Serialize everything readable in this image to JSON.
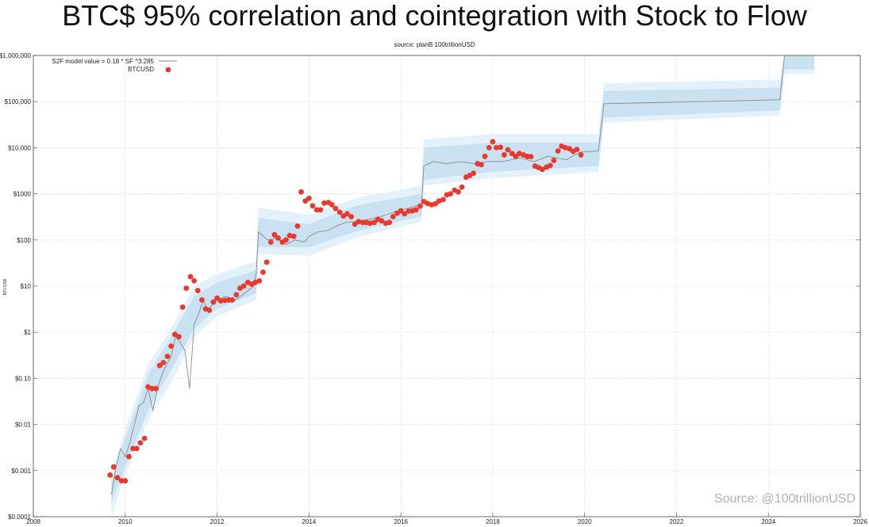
{
  "header": {
    "title": "BTC$ 95% correlation and cointegration with Stock to Flow",
    "source_top": "source: planB 100trillionUSD",
    "watermark": "Source: @100trillionUSD"
  },
  "chart_data": {
    "type": "scatter",
    "title": "BTC$ 95% correlation and cointegration with Stock to Flow",
    "subtitle": "source: planB 100trillionUSD",
    "ylabel": "BTCUSD",
    "yscale": "log",
    "xlim": [
      2008,
      2026
    ],
    "ylim": [
      0.0001,
      1000000
    ],
    "grid": true,
    "legend_position": "top-left",
    "x_ticks": [
      "2008",
      "2010",
      "2012",
      "2014",
      "2016",
      "2018",
      "2020",
      "2022",
      "2024",
      "2026"
    ],
    "y_ticks": [
      {
        "value": 0.0001,
        "label": "$0.0001"
      },
      {
        "value": 0.001,
        "label": "$0.001"
      },
      {
        "value": 0.01,
        "label": "$0.01"
      },
      {
        "value": 0.1,
        "label": "$0.10"
      },
      {
        "value": 1,
        "label": "$1"
      },
      {
        "value": 10,
        "label": "$10"
      },
      {
        "value": 100,
        "label": "$100"
      },
      {
        "value": 1000,
        "label": "$1000"
      },
      {
        "value": 10000,
        "label": "$10,000"
      },
      {
        "value": 100000,
        "label": "$100,000"
      },
      {
        "value": 1000000,
        "label": "$1,000,000"
      }
    ],
    "colors": {
      "model": "#8a8a8a",
      "btc": "#e8392d",
      "band_inner": "#c9e1f1",
      "band_outer": "#e3f1fb",
      "grid": "#d6d6d6"
    },
    "series": [
      {
        "name": "S2F model value = 0.18 * SF ^3.285",
        "kind": "line",
        "points": [
          [
            2009.7,
            0.0003
          ],
          [
            2009.8,
            0.0012
          ],
          [
            2009.9,
            0.003
          ],
          [
            2010.0,
            0.002
          ],
          [
            2010.1,
            0.004
          ],
          [
            2010.2,
            0.01
          ],
          [
            2010.3,
            0.025
          ],
          [
            2010.4,
            0.03
          ],
          [
            2010.5,
            0.06
          ],
          [
            2010.6,
            0.02
          ],
          [
            2010.7,
            0.06
          ],
          [
            2010.8,
            0.12
          ],
          [
            2010.9,
            0.2
          ],
          [
            2011.0,
            0.3
          ],
          [
            2011.1,
            0.8
          ],
          [
            2011.2,
            0.6
          ],
          [
            2011.3,
            0.4
          ],
          [
            2011.4,
            0.06
          ],
          [
            2011.5,
            1.5
          ],
          [
            2011.6,
            2.5
          ],
          [
            2011.7,
            5
          ],
          [
            2011.8,
            3
          ],
          [
            2011.9,
            4
          ],
          [
            2012.0,
            5
          ],
          [
            2012.2,
            6
          ],
          [
            2012.4,
            5
          ],
          [
            2012.6,
            7
          ],
          [
            2012.8,
            10
          ],
          [
            2012.85,
            18
          ],
          [
            2012.9,
            150
          ],
          [
            2013.1,
            100
          ],
          [
            2013.3,
            110
          ],
          [
            2013.5,
            80
          ],
          [
            2013.7,
            100
          ],
          [
            2013.9,
            90
          ],
          [
            2014.0,
            120
          ],
          [
            2014.2,
            150
          ],
          [
            2014.4,
            160
          ],
          [
            2014.6,
            200
          ],
          [
            2014.8,
            240
          ],
          [
            2015.0,
            250
          ],
          [
            2015.3,
            280
          ],
          [
            2015.6,
            330
          ],
          [
            2015.9,
            420
          ],
          [
            2016.2,
            500
          ],
          [
            2016.45,
            600
          ],
          [
            2016.5,
            4000
          ],
          [
            2016.7,
            5000
          ],
          [
            2017.0,
            4500
          ],
          [
            2017.3,
            5000
          ],
          [
            2017.6,
            4500
          ],
          [
            2017.9,
            5000
          ],
          [
            2018.2,
            5000
          ],
          [
            2018.6,
            6000
          ],
          [
            2018.9,
            5000
          ],
          [
            2019.2,
            6500
          ],
          [
            2019.6,
            5500
          ],
          [
            2019.9,
            8000
          ],
          [
            2020.3,
            8500
          ],
          [
            2020.42,
            90000
          ],
          [
            2021.5,
            95000
          ],
          [
            2022.5,
            100000
          ],
          [
            2023.5,
            105000
          ],
          [
            2024.25,
            110000
          ],
          [
            2024.35,
            1000000
          ]
        ]
      },
      {
        "name": "BTCUSD",
        "kind": "scatter",
        "points": [
          [
            2009.67,
            0.0008
          ],
          [
            2009.75,
            0.0012
          ],
          [
            2009.83,
            0.0007
          ],
          [
            2009.92,
            0.0006
          ],
          [
            2010.0,
            0.0006
          ],
          [
            2010.08,
            0.002
          ],
          [
            2010.17,
            0.003
          ],
          [
            2010.25,
            0.003
          ],
          [
            2010.33,
            0.004
          ],
          [
            2010.42,
            0.005
          ],
          [
            2010.5,
            0.065
          ],
          [
            2010.58,
            0.06
          ],
          [
            2010.67,
            0.06
          ],
          [
            2010.75,
            0.19
          ],
          [
            2010.83,
            0.22
          ],
          [
            2010.92,
            0.3
          ],
          [
            2011.0,
            0.5
          ],
          [
            2011.08,
            0.9
          ],
          [
            2011.17,
            0.8
          ],
          [
            2011.25,
            3.5
          ],
          [
            2011.33,
            9
          ],
          [
            2011.42,
            16
          ],
          [
            2011.5,
            13
          ],
          [
            2011.58,
            8
          ],
          [
            2011.67,
            5
          ],
          [
            2011.75,
            3.2
          ],
          [
            2011.83,
            3
          ],
          [
            2011.92,
            4.5
          ],
          [
            2012.0,
            5.5
          ],
          [
            2012.08,
            4.8
          ],
          [
            2012.17,
            4.9
          ],
          [
            2012.25,
            5
          ],
          [
            2012.33,
            5
          ],
          [
            2012.42,
            6.5
          ],
          [
            2012.5,
            9
          ],
          [
            2012.58,
            10
          ],
          [
            2012.67,
            12
          ],
          [
            2012.75,
            11
          ],
          [
            2012.83,
            12
          ],
          [
            2012.92,
            13
          ],
          [
            2013.0,
            20
          ],
          [
            2013.08,
            33
          ],
          [
            2013.17,
            90
          ],
          [
            2013.25,
            130
          ],
          [
            2013.33,
            110
          ],
          [
            2013.42,
            90
          ],
          [
            2013.5,
            100
          ],
          [
            2013.58,
            125
          ],
          [
            2013.67,
            120
          ],
          [
            2013.75,
            200
          ],
          [
            2013.83,
            1100
          ],
          [
            2013.92,
            700
          ],
          [
            2014.0,
            800
          ],
          [
            2014.08,
            550
          ],
          [
            2014.17,
            450
          ],
          [
            2014.25,
            450
          ],
          [
            2014.33,
            630
          ],
          [
            2014.42,
            650
          ],
          [
            2014.5,
            580
          ],
          [
            2014.58,
            480
          ],
          [
            2014.67,
            400
          ],
          [
            2014.75,
            330
          ],
          [
            2014.83,
            370
          ],
          [
            2014.92,
            320
          ],
          [
            2015.0,
            220
          ],
          [
            2015.08,
            250
          ],
          [
            2015.17,
            240
          ],
          [
            2015.25,
            240
          ],
          [
            2015.33,
            230
          ],
          [
            2015.42,
            240
          ],
          [
            2015.5,
            280
          ],
          [
            2015.58,
            260
          ],
          [
            2015.67,
            230
          ],
          [
            2015.75,
            240
          ],
          [
            2015.83,
            320
          ],
          [
            2015.92,
            380
          ],
          [
            2016.0,
            430
          ],
          [
            2016.08,
            370
          ],
          [
            2016.17,
            420
          ],
          [
            2016.25,
            430
          ],
          [
            2016.33,
            450
          ],
          [
            2016.42,
            540
          ],
          [
            2016.5,
            680
          ],
          [
            2016.58,
            620
          ],
          [
            2016.67,
            580
          ],
          [
            2016.75,
            610
          ],
          [
            2016.83,
            700
          ],
          [
            2016.92,
            750
          ],
          [
            2017.0,
            950
          ],
          [
            2017.08,
            1000
          ],
          [
            2017.17,
            1200
          ],
          [
            2017.25,
            1100
          ],
          [
            2017.33,
            1400
          ],
          [
            2017.42,
            2300
          ],
          [
            2017.5,
            2500
          ],
          [
            2017.58,
            2800
          ],
          [
            2017.67,
            4500
          ],
          [
            2017.75,
            4300
          ],
          [
            2017.83,
            6500
          ],
          [
            2017.92,
            10000
          ],
          [
            2018.0,
            13500
          ],
          [
            2018.08,
            10000
          ],
          [
            2018.17,
            10200
          ],
          [
            2018.25,
            7000
          ],
          [
            2018.33,
            9000
          ],
          [
            2018.42,
            7500
          ],
          [
            2018.5,
            6500
          ],
          [
            2018.58,
            7500
          ],
          [
            2018.67,
            7000
          ],
          [
            2018.75,
            6500
          ],
          [
            2018.83,
            6400
          ],
          [
            2018.92,
            4000
          ],
          [
            2019.0,
            3700
          ],
          [
            2019.08,
            3400
          ],
          [
            2019.17,
            3800
          ],
          [
            2019.25,
            4100
          ],
          [
            2019.33,
            5300
          ],
          [
            2019.42,
            8500
          ],
          [
            2019.5,
            10800
          ],
          [
            2019.58,
            10000
          ],
          [
            2019.67,
            9500
          ],
          [
            2019.75,
            8300
          ],
          [
            2019.83,
            9200
          ],
          [
            2019.92,
            7000
          ]
        ]
      }
    ],
    "bands": [
      {
        "name": "outer",
        "points": [
          [
            2009.7,
            0.0001,
            0.0009
          ],
          [
            2010.0,
            0.0008,
            0.008
          ],
          [
            2010.5,
            0.012,
            0.2
          ],
          [
            2011.0,
            0.08,
            1.2
          ],
          [
            2011.5,
            0.8,
            10
          ],
          [
            2012.0,
            2.2,
            18
          ],
          [
            2012.85,
            5,
            35
          ],
          [
            2012.9,
            50,
            500
          ],
          [
            2014.0,
            45,
            350
          ],
          [
            2015.0,
            110,
            800
          ],
          [
            2016.45,
            250,
            1500
          ],
          [
            2016.5,
            1500,
            15000
          ],
          [
            2018.0,
            2200,
            20000
          ],
          [
            2020.3,
            3000,
            20000
          ],
          [
            2020.42,
            35000,
            250000
          ],
          [
            2024.25,
            50000,
            300000
          ],
          [
            2024.35,
            400000,
            1000000
          ],
          [
            2025.0,
            400000,
            1000000
          ]
        ]
      },
      {
        "name": "inner",
        "points": [
          [
            2009.7,
            0.0002,
            0.0007
          ],
          [
            2010.0,
            0.0012,
            0.005
          ],
          [
            2010.5,
            0.02,
            0.12
          ],
          [
            2011.0,
            0.15,
            0.8
          ],
          [
            2011.5,
            1.2,
            6
          ],
          [
            2012.0,
            3.2,
            12
          ],
          [
            2012.85,
            7,
            22
          ],
          [
            2012.9,
            70,
            300
          ],
          [
            2014.0,
            70,
            220
          ],
          [
            2015.0,
            150,
            550
          ],
          [
            2016.45,
            330,
            1000
          ],
          [
            2016.5,
            2000,
            10000
          ],
          [
            2018.0,
            3000,
            13000
          ],
          [
            2020.3,
            4000,
            13000
          ],
          [
            2020.42,
            45000,
            170000
          ],
          [
            2024.25,
            65000,
            200000
          ],
          [
            2024.35,
            500000,
            1000000
          ],
          [
            2025.0,
            500000,
            1000000
          ]
        ]
      }
    ]
  }
}
